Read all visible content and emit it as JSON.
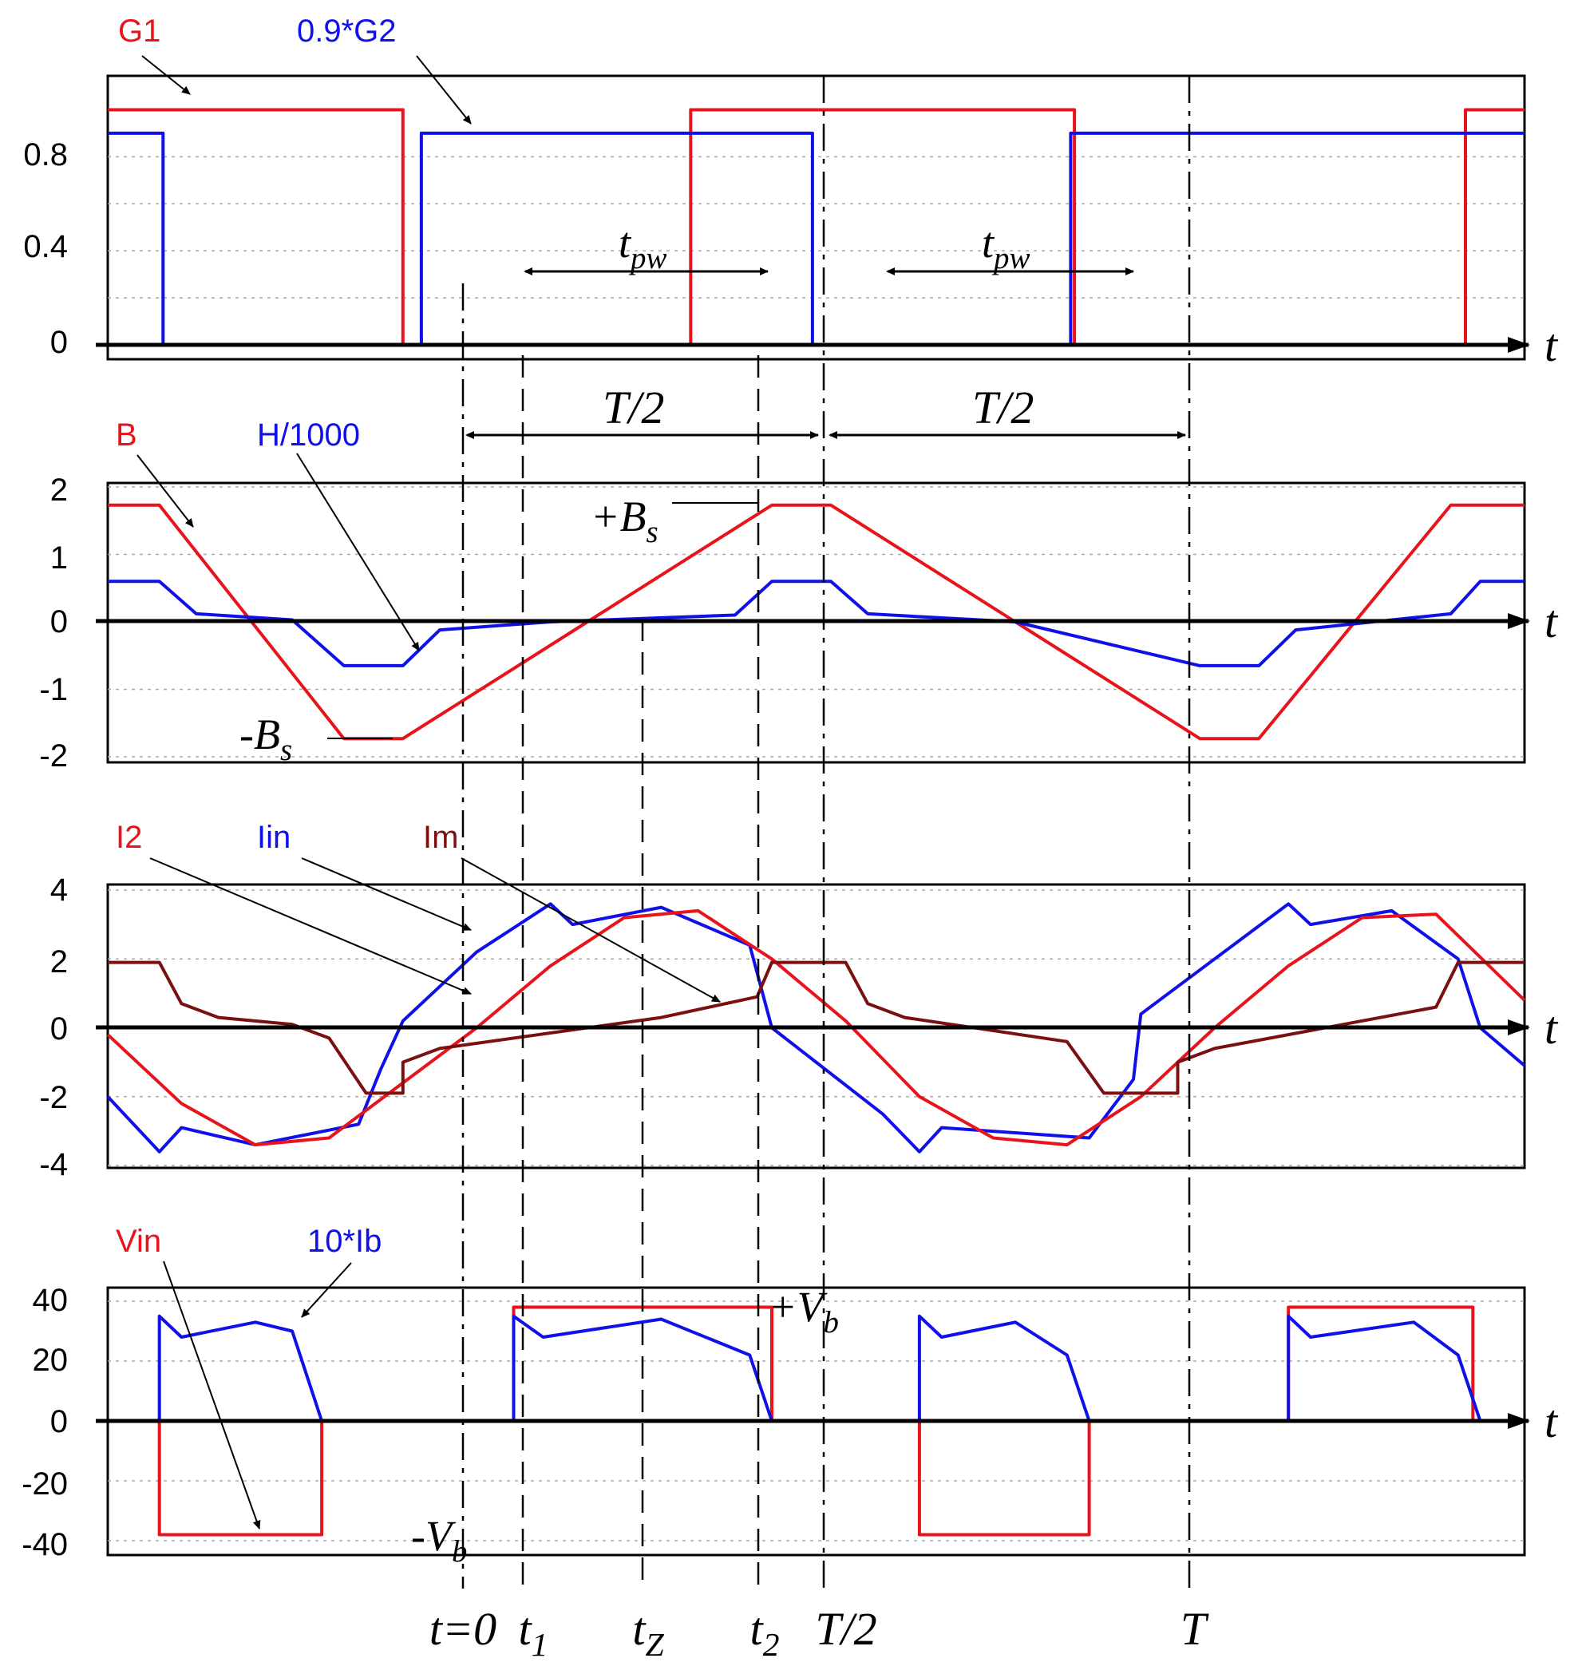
{
  "chart_data": [
    {
      "type": "line",
      "ticks": [
        "0.8",
        "0.4",
        "0"
      ],
      "ylim": [
        0,
        1.1
      ],
      "axis_label": "t",
      "grid": true,
      "series": [
        {
          "name": "G1",
          "color": "#e8141c",
          "points": [
            [
              -5.0,
              1
            ],
            [
              -1.0,
              1
            ],
            [
              -1.0,
              0
            ],
            [
              2.9,
              0
            ],
            [
              2.9,
              1
            ],
            [
              8.1,
              1
            ],
            [
              8.1,
              0
            ],
            [
              13.4,
              0
            ],
            [
              13.4,
              1
            ],
            [
              14.2,
              1
            ]
          ]
        },
        {
          "name": "0.9*G2",
          "color": "#1010e8",
          "points": [
            [
              -5.0,
              0.9
            ],
            [
              -4.25,
              0.9
            ],
            [
              -4.25,
              0
            ],
            [
              -0.75,
              0
            ],
            [
              -0.75,
              0.9
            ],
            [
              4.55,
              0.9
            ],
            [
              4.55,
              0
            ],
            [
              8.05,
              0
            ],
            [
              8.05,
              0.9
            ],
            [
              14.2,
              0.9
            ]
          ]
        }
      ],
      "annotations": {
        "tpw_1": "tpw",
        "tpw_2": "tpw"
      }
    },
    {
      "type": "line",
      "ticks": [
        "2",
        "1",
        "0",
        "-1",
        "-2"
      ],
      "ylim": [
        -2.05,
        2.05
      ],
      "axis_label": "t",
      "grid": true,
      "series": [
        {
          "name": "B",
          "color": "#e8141c",
          "points": [
            [
              -5.0,
              1.73
            ],
            [
              -4.3,
              1.73
            ],
            [
              -1.8,
              -1.73
            ],
            [
              -1.0,
              -1.73
            ],
            [
              1.5,
              0
            ],
            [
              4.0,
              1.73
            ],
            [
              4.8,
              1.73
            ],
            [
              7.3,
              0
            ],
            [
              9.8,
              -1.73
            ],
            [
              10.6,
              -1.73
            ],
            [
              13.2,
              1.73
            ],
            [
              14.2,
              1.73
            ]
          ]
        },
        {
          "name": "H/1000",
          "color": "#1010e8",
          "points": [
            [
              -5.0,
              0.6
            ],
            [
              -4.3,
              0.6
            ],
            [
              -3.8,
              0.12
            ],
            [
              -2.5,
              0.03
            ],
            [
              -1.8,
              -0.65
            ],
            [
              -1.0,
              -0.65
            ],
            [
              -0.5,
              -0.12
            ],
            [
              1.0,
              0
            ],
            [
              3.5,
              0.1
            ],
            [
              4.0,
              0.6
            ],
            [
              4.8,
              0.6
            ],
            [
              5.3,
              0.12
            ],
            [
              7.3,
              0
            ],
            [
              9.8,
              -0.65
            ],
            [
              10.6,
              -0.65
            ],
            [
              11.1,
              -0.12
            ],
            [
              13.2,
              0.12
            ],
            [
              13.6,
              0.6
            ],
            [
              14.2,
              0.6
            ]
          ]
        }
      ],
      "annotations": {
        "bs_plus": "+Bs",
        "bs_minus": "-Bs"
      }
    },
    {
      "type": "line",
      "ticks": [
        "4",
        "2",
        "0",
        "-2",
        "-4"
      ],
      "ylim": [
        -4,
        4
      ],
      "axis_label": "t",
      "grid": true,
      "series": [
        {
          "name": "Iin",
          "color": "#1010e8",
          "points": [
            [
              -5.0,
              -2.0
            ],
            [
              -4.3,
              -3.6
            ],
            [
              -4.0,
              -2.9
            ],
            [
              -3.0,
              -3.4
            ],
            [
              -1.6,
              -2.8
            ],
            [
              -1.3,
              -1.2
            ],
            [
              -1.0,
              0.2
            ],
            [
              0,
              2.2
            ],
            [
              1.0,
              3.6
            ],
            [
              1.3,
              3.0
            ],
            [
              2.5,
              3.5
            ],
            [
              3.7,
              2.4
            ],
            [
              4.0,
              0
            ],
            [
              5.5,
              -2.5
            ],
            [
              6.0,
              -3.6
            ],
            [
              6.3,
              -2.9
            ],
            [
              8.3,
              -3.2
            ],
            [
              8.9,
              -1.5
            ],
            [
              9.0,
              0.4
            ],
            [
              10.0,
              2.0
            ],
            [
              11.0,
              3.6
            ],
            [
              11.3,
              3.0
            ],
            [
              12.4,
              3.4
            ],
            [
              13.3,
              2.0
            ],
            [
              13.6,
              0
            ],
            [
              14.2,
              -1.1
            ]
          ]
        },
        {
          "name": "I2",
          "color": "#e8141c",
          "points": [
            [
              -5.0,
              -0.2
            ],
            [
              -4.0,
              -2.2
            ],
            [
              -3.0,
              -3.4
            ],
            [
              -2.0,
              -3.2
            ],
            [
              -1.0,
              -1.6
            ],
            [
              0,
              0
            ],
            [
              1.0,
              1.8
            ],
            [
              2.0,
              3.2
            ],
            [
              3.0,
              3.4
            ],
            [
              4.0,
              2.0
            ],
            [
              5.0,
              0.2
            ],
            [
              6.0,
              -2.0
            ],
            [
              7.0,
              -3.2
            ],
            [
              8.0,
              -3.4
            ],
            [
              9.0,
              -2.0
            ],
            [
              10.0,
              0
            ],
            [
              11.0,
              1.8
            ],
            [
              12.0,
              3.2
            ],
            [
              13.0,
              3.3
            ],
            [
              14.2,
              0.8
            ]
          ]
        },
        {
          "name": "Im",
          "color": "#7a1010",
          "points": [
            [
              -5.0,
              1.9
            ],
            [
              -4.3,
              1.9
            ],
            [
              -4.0,
              0.7
            ],
            [
              -3.5,
              0.3
            ],
            [
              -2.5,
              0.1
            ],
            [
              -2.0,
              -0.3
            ],
            [
              -1.5,
              -1.9
            ],
            [
              -1.0,
              -1.9
            ],
            [
              -1.0,
              -1.0
            ],
            [
              -0.5,
              -0.6
            ],
            [
              2.5,
              0.3
            ],
            [
              3.8,
              0.9
            ],
            [
              4.0,
              1.9
            ],
            [
              5.0,
              1.9
            ],
            [
              5.3,
              0.7
            ],
            [
              5.8,
              0.3
            ],
            [
              8.0,
              -0.4
            ],
            [
              8.5,
              -1.9
            ],
            [
              9.5,
              -1.9
            ],
            [
              9.5,
              -1.0
            ],
            [
              10.0,
              -0.6
            ],
            [
              13.0,
              0.6
            ],
            [
              13.3,
              1.9
            ],
            [
              14.2,
              1.9
            ]
          ]
        }
      ]
    },
    {
      "type": "line",
      "ticks": [
        "40",
        "20",
        "0",
        "-20",
        "-40"
      ],
      "ylim": [
        -42,
        42
      ],
      "axis_label": "t",
      "grid": true,
      "series": [
        {
          "name": "Vin",
          "color": "#e8141c",
          "points": [
            [
              -5.0,
              0
            ],
            [
              -4.3,
              0
            ],
            [
              -4.3,
              -38
            ],
            [
              -2.1,
              -38
            ],
            [
              -2.1,
              0
            ],
            [
              0.5,
              0
            ],
            [
              0.5,
              38
            ],
            [
              4.0,
              38
            ],
            [
              4.0,
              0
            ],
            [
              6.0,
              0
            ],
            [
              6.0,
              -38
            ],
            [
              8.3,
              -38
            ],
            [
              8.3,
              0
            ],
            [
              11.0,
              0
            ],
            [
              11.0,
              38
            ],
            [
              13.5,
              38
            ],
            [
              13.5,
              0
            ],
            [
              14.2,
              0
            ]
          ]
        },
        {
          "name": "10*Ib",
          "color": "#1010e8",
          "points": [
            [
              -5.0,
              0
            ],
            [
              -4.3,
              0
            ],
            [
              -4.3,
              35
            ],
            [
              -4.0,
              28
            ],
            [
              -3.0,
              33
            ],
            [
              -2.5,
              30
            ],
            [
              -2.1,
              0
            ],
            [
              0.5,
              0
            ],
            [
              0.5,
              35
            ],
            [
              0.9,
              28
            ],
            [
              2.5,
              34
            ],
            [
              3.7,
              22
            ],
            [
              4.0,
              0
            ],
            [
              6.0,
              0
            ],
            [
              6.0,
              35
            ],
            [
              6.3,
              28
            ],
            [
              7.3,
              33
            ],
            [
              8.0,
              22
            ],
            [
              8.3,
              0
            ],
            [
              11.0,
              0
            ],
            [
              11.0,
              35
            ],
            [
              11.3,
              28
            ],
            [
              12.7,
              33
            ],
            [
              13.3,
              22
            ],
            [
              13.6,
              0
            ],
            [
              14.2,
              0
            ]
          ]
        }
      ],
      "annotations": {
        "vb_plus": "+Vb",
        "vb_minus": "-Vb"
      }
    }
  ],
  "time_markers": {
    "labels": [
      "t=0",
      "t1",
      "tZ",
      "t2",
      "T/2",
      "T"
    ],
    "half_period_1": "T/2",
    "half_period_2": "T/2"
  },
  "ui": {
    "label_color_red": "#e8141c",
    "label_color_blue": "#1010e8",
    "label_color_darkred": "#7a1010"
  }
}
